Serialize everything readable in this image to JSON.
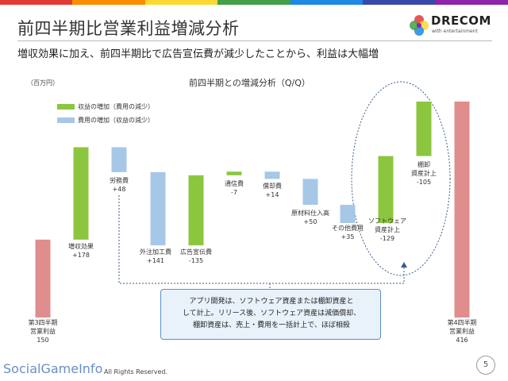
{
  "header": {
    "title": "前四半期比営業利益増減分析",
    "subtitle": "増収効果に加え、前四半期比で広告宣伝費が減少したことから、利益は大幅増",
    "logo_text": "DRECOM",
    "logo_sub": "with entertainment",
    "rainbow_colors": [
      "#e53935",
      "#fb8c00",
      "#fdd835",
      "#43a047",
      "#1e88e5",
      "#3949ab",
      "#8e24aa"
    ]
  },
  "colors": {
    "endpoint": "#e08d8d",
    "increase": "#8cc63f",
    "decrease": "#a7c7e7",
    "connector": "#3b5b8c",
    "callout_border": "#3b5b8c"
  },
  "chart_data": {
    "type": "bar",
    "title": "前四半期との増減分析（Q/Q）",
    "unit_label": "（百万円）",
    "legend": [
      {
        "label": "収益の増加（費用の減少）",
        "color": "#8cc63f"
      },
      {
        "label": "費用の増加（収益の減少）",
        "color": "#a7c7e7"
      }
    ],
    "bars": [
      {
        "label_lines": [
          "第3四半期",
          "営業利益",
          "150"
        ],
        "value": 150,
        "kind": "endpoint"
      },
      {
        "label_lines": [
          "増収効果",
          "+178"
        ],
        "value": 178,
        "kind": "increase"
      },
      {
        "label_lines": [
          "労務費",
          "+48"
        ],
        "value": 48,
        "kind": "decrease"
      },
      {
        "label_lines": [
          "外注加工費",
          "+141"
        ],
        "value": 141,
        "kind": "decrease"
      },
      {
        "label_lines": [
          "広告宣伝費",
          "-135"
        ],
        "value": 135,
        "kind": "increase"
      },
      {
        "label_lines": [
          "通信費",
          "-7"
        ],
        "value": 7,
        "kind": "increase"
      },
      {
        "label_lines": [
          "償却費",
          "+14"
        ],
        "value": 14,
        "kind": "decrease"
      },
      {
        "label_lines": [
          "原材料仕入高",
          "+50"
        ],
        "value": 50,
        "kind": "decrease"
      },
      {
        "label_lines": [
          "その他費用",
          "+35"
        ],
        "value": 35,
        "kind": "decrease"
      },
      {
        "label_lines": [
          "ソフトウェア",
          "資産計上",
          "-129"
        ],
        "value": 129,
        "kind": "increase"
      },
      {
        "label_lines": [
          "棚卸",
          "資産計上",
          "-105"
        ],
        "value": 105,
        "kind": "increase"
      },
      {
        "label_lines": [
          "第4四半期",
          "営業利益",
          "416"
        ],
        "value": 416,
        "kind": "endpoint"
      }
    ]
  },
  "callout": {
    "line1": "アプリ開発は、ソフトウェア資産または棚卸資産と",
    "line2": "して計上。リリース後、ソフトウェア資産は減価償却、",
    "line3": "棚卸資産は、売上・費用を一括計上で、ほぼ相殺"
  },
  "page_number": "5",
  "footer": {
    "brand": "SocialGameInfo",
    "copyright": "All Rights Reserved."
  }
}
